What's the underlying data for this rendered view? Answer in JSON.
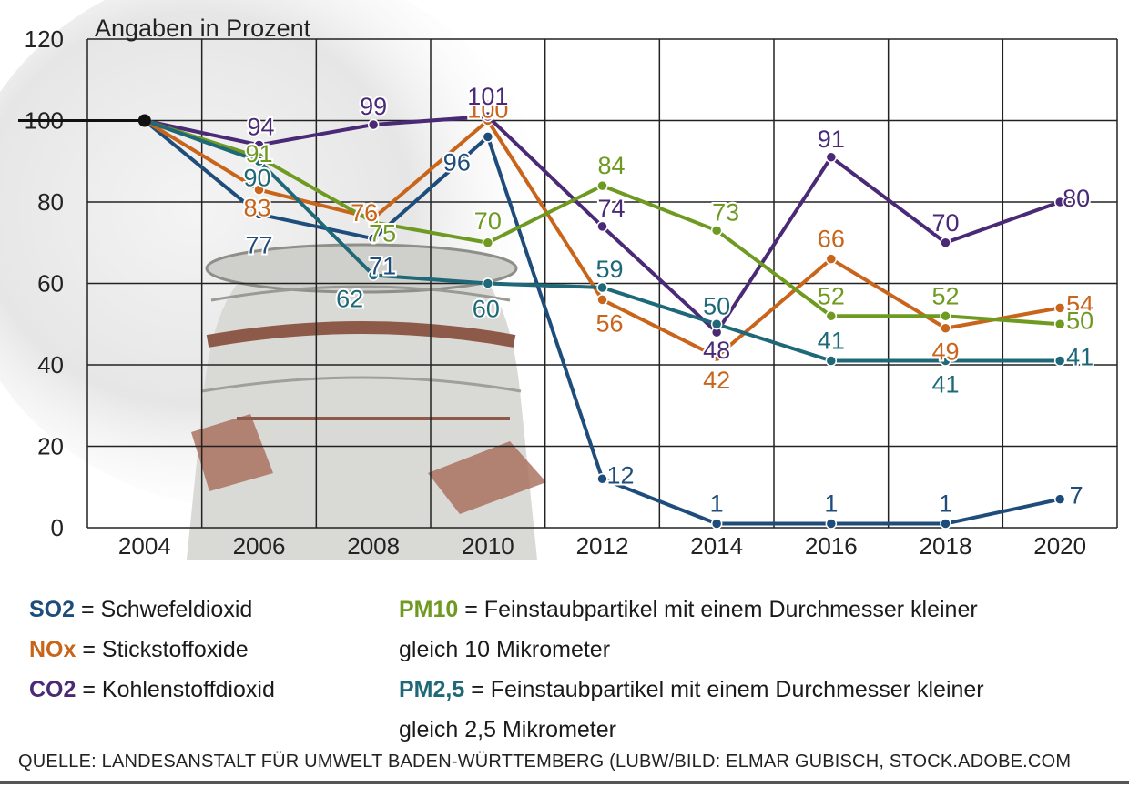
{
  "chart_data": {
    "type": "line",
    "title": "Angaben in Prozent",
    "xlabel": "",
    "ylabel": "",
    "x_ticks": [
      "2004",
      "2006",
      "2008",
      "2010",
      "2012",
      "2014",
      "2016",
      "2018",
      "2020"
    ],
    "y_ticks": [
      "0",
      "20",
      "40",
      "60",
      "80",
      "100",
      "120"
    ],
    "ylim": [
      0,
      120
    ],
    "grid": true,
    "series": [
      {
        "name": "SO2",
        "color": "#1e4d7b",
        "values": [
          100,
          77,
          71,
          96,
          12,
          1,
          1,
          1,
          7
        ],
        "labels": [
          "",
          "77",
          "71",
          "96",
          "12",
          "1",
          "1",
          "1",
          "7"
        ]
      },
      {
        "name": "NOx",
        "color": "#c8651b",
        "values": [
          100,
          83,
          76,
          100,
          56,
          42,
          66,
          49,
          54
        ],
        "labels": [
          "",
          "83",
          "76",
          "100",
          "56",
          "42",
          "66",
          "49",
          "54"
        ]
      },
      {
        "name": "CO2",
        "color": "#4a2a76",
        "values": [
          100,
          94,
          99,
          101,
          74,
          48,
          91,
          70,
          80
        ],
        "labels": [
          "",
          "94",
          "99",
          "101",
          "74",
          "48",
          "91",
          "70",
          "80"
        ]
      },
      {
        "name": "PM10",
        "color": "#6f9a22",
        "values": [
          100,
          91,
          75,
          70,
          84,
          73,
          52,
          52,
          50
        ],
        "labels": [
          "",
          "91",
          "75",
          "70",
          "84",
          "73",
          "52",
          "52",
          "50"
        ]
      },
      {
        "name": "PM2,5",
        "color": "#1e6878",
        "values": [
          100,
          90,
          62,
          60,
          59,
          50,
          41,
          41,
          41
        ],
        "labels": [
          "",
          "90",
          "62",
          "60",
          "59",
          "50",
          "41",
          "41",
          "41"
        ]
      }
    ]
  },
  "legend": {
    "so2": {
      "abbr": "SO2",
      "text": " = Schwefeldioxid"
    },
    "nox": {
      "abbr": "NOx",
      "text": " = Stickstoffoxide"
    },
    "co2": {
      "abbr": "CO2",
      "text": " = Kohlenstoffdioxid"
    },
    "pm10": {
      "abbr": "PM10",
      "text": " = Feinstaubpartikel mit einem Durchmesser kleiner",
      "text2": "gleich 10 Mikrometer"
    },
    "pm25": {
      "abbr": "PM2,5",
      "text": " = Feinstaubpartikel mit einem Durchmesser kleiner",
      "text2": "gleich 2,5 Mikrometer"
    }
  },
  "source": "QUELLE: LANDESANSTALT FÜR UMWELT BADEN-WÜRTTEMBERG (LUBW/BILD: ELMAR GUBISCH, STOCK.ADOBE.COM"
}
